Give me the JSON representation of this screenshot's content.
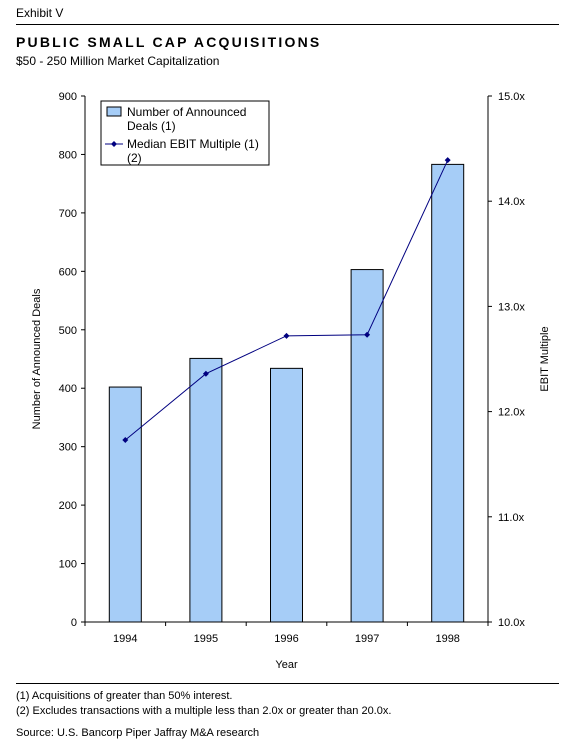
{
  "header": {
    "exhibit": "Exhibit V",
    "title": "PUBLIC SMALL CAP ACQUISITIONS",
    "subtitle": "$50 - 250 Million Market Capitalization"
  },
  "chart_data": {
    "type": "bar",
    "categories": [
      "1994",
      "1995",
      "1996",
      "1997",
      "1998"
    ],
    "series": [
      {
        "name": "Number of Announced Deals (1)",
        "type": "bar",
        "axis": "left",
        "values": [
          402,
          451,
          434,
          603,
          783
        ]
      },
      {
        "name": "Median EBIT Multiple (1) (2)",
        "type": "line",
        "axis": "right",
        "values": [
          11.73,
          12.36,
          12.72,
          12.73,
          14.39
        ]
      }
    ],
    "xlabel": "Year",
    "ylabel": "Number of Announced Deals",
    "y2label": "EBIT Multiple",
    "ylim": [
      0,
      900
    ],
    "y2lim": [
      10.0,
      15.0
    ],
    "yticks": [
      "0",
      "100",
      "200",
      "300",
      "400",
      "500",
      "600",
      "700",
      "800",
      "900"
    ],
    "y2ticks": [
      "10.0x",
      "11.0x",
      "12.0x",
      "13.0x",
      "14.0x",
      "15.0x"
    ],
    "legend": {
      "placement": "top-left",
      "bar_lines": [
        "Number of Announced",
        "Deals (1)"
      ],
      "line_lines": [
        "Median EBIT Multiple (1)",
        "(2)"
      ]
    },
    "colors": {
      "bar_fill": "#a6cdf7",
      "bar_stroke": "#000000",
      "line": "#000080"
    },
    "grid": false
  },
  "footnotes": {
    "note1": "(1) Acquisitions of greater than 50% interest.",
    "note2": "(2) Excludes transactions with a multiple less than 2.0x or greater than 20.0x.",
    "source": "Source: U.S. Bancorp Piper Jaffray M&A research"
  }
}
